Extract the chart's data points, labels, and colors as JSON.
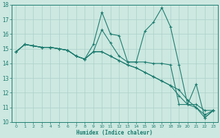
{
  "xlabel": "Humidex (Indice chaleur)",
  "ylabel": "",
  "xlim": [
    -0.5,
    23.5
  ],
  "ylim": [
    10,
    18
  ],
  "yticks": [
    10,
    11,
    12,
    13,
    14,
    15,
    16,
    17,
    18
  ],
  "xticks": [
    0,
    1,
    2,
    3,
    4,
    5,
    6,
    7,
    8,
    9,
    10,
    11,
    12,
    13,
    14,
    15,
    16,
    17,
    18,
    19,
    20,
    21,
    22,
    23
  ],
  "bg_color": "#cce8e0",
  "grid_color": "#aacfc8",
  "line_color": "#1a7a6e",
  "line1_y": [
    14.8,
    15.3,
    15.2,
    15.1,
    15.1,
    15.0,
    14.9,
    14.5,
    14.3,
    15.3,
    17.5,
    16.0,
    15.9,
    14.1,
    14.1,
    16.2,
    16.8,
    17.8,
    16.5,
    13.9,
    11.2,
    12.6,
    10.3,
    10.8
  ],
  "line2_y": [
    14.8,
    15.3,
    15.2,
    15.1,
    15.1,
    15.0,
    14.9,
    14.5,
    14.3,
    14.8,
    16.3,
    15.4,
    14.5,
    14.1,
    14.1,
    14.1,
    14.0,
    14.0,
    13.9,
    11.2,
    11.2,
    11.2,
    10.8,
    10.8
  ],
  "line3_y": [
    14.8,
    15.3,
    15.2,
    15.1,
    15.1,
    15.0,
    14.9,
    14.5,
    14.3,
    14.8,
    14.8,
    14.5,
    14.2,
    13.9,
    13.7,
    13.4,
    13.1,
    12.8,
    12.5,
    12.2,
    11.5,
    11.0,
    10.5,
    10.8
  ],
  "line4_y": [
    14.8,
    15.3,
    15.2,
    15.1,
    15.1,
    15.0,
    14.9,
    14.5,
    14.3,
    14.8,
    14.8,
    14.5,
    14.2,
    13.9,
    13.7,
    13.4,
    13.1,
    12.8,
    12.5,
    11.8,
    11.2,
    11.0,
    10.3,
    10.8
  ]
}
